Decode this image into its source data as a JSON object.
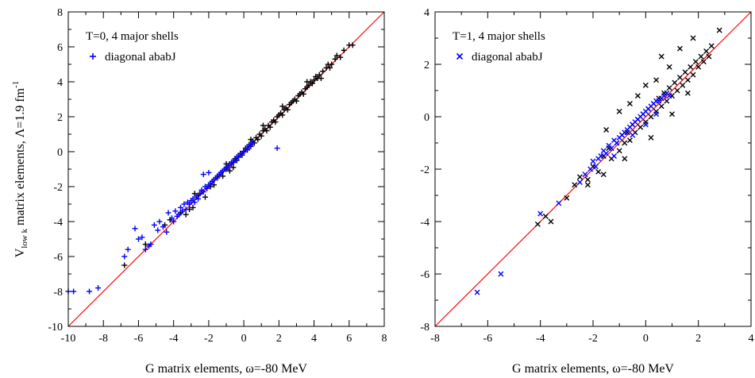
{
  "chart_data": [
    {
      "type": "scatter",
      "xlabel": "G matrix elements, ω=-80 MeV",
      "ylabel_parts": {
        "main": "V",
        "sub": "low k",
        "rest": " matrix elements, Λ=1.9 fm",
        "sup": "-1"
      },
      "xlim": [
        -10,
        8
      ],
      "ylim": [
        -10,
        8
      ],
      "xticks": [
        -10,
        -8,
        -6,
        -4,
        -2,
        0,
        2,
        4,
        6,
        8
      ],
      "yticks": [
        -10,
        -8,
        -6,
        -4,
        -2,
        0,
        2,
        4,
        6,
        8
      ],
      "legend_title": "T=0, 4 major shells",
      "legend_position": "top-left",
      "reference_line": {
        "from": [
          -10,
          -10
        ],
        "to": [
          8,
          8
        ],
        "color": "#ff0000"
      },
      "series": [
        {
          "name": "",
          "marker": "plus",
          "color": "#000000",
          "points": [
            [
              -6.8,
              -6.5
            ],
            [
              -5.6,
              -5.3
            ],
            [
              -4.5,
              -4.2
            ],
            [
              -4.2,
              -3.9
            ],
            [
              -3.6,
              -3.5
            ],
            [
              -3.3,
              -3.6
            ],
            [
              -3.1,
              -3.3
            ],
            [
              -2.9,
              -3.2
            ],
            [
              -2.6,
              -2.5
            ],
            [
              -2.4,
              -2.3
            ],
            [
              -2.2,
              -2.6
            ],
            [
              -2.1,
              -2.1
            ],
            [
              -1.9,
              -2.0
            ],
            [
              -1.7,
              -1.9
            ],
            [
              -1.5,
              -1.4
            ],
            [
              -1.3,
              -1.2
            ],
            [
              -1.2,
              -1.4
            ],
            [
              -1.0,
              -1.0
            ],
            [
              -0.9,
              -0.8
            ],
            [
              -0.8,
              -1.1
            ],
            [
              -0.7,
              -0.7
            ],
            [
              -0.6,
              -0.6
            ],
            [
              -0.5,
              -0.4
            ],
            [
              -0.4,
              -0.5
            ],
            [
              -0.3,
              -0.3
            ],
            [
              -0.2,
              -0.1
            ],
            [
              -0.1,
              -0.2
            ],
            [
              0.0,
              0.0
            ],
            [
              0.1,
              0.2
            ],
            [
              0.2,
              0.1
            ],
            [
              0.3,
              0.4
            ],
            [
              0.4,
              0.3
            ],
            [
              0.5,
              0.6
            ],
            [
              0.6,
              0.5
            ],
            [
              0.7,
              0.8
            ],
            [
              0.8,
              0.7
            ],
            [
              0.9,
              1.0
            ],
            [
              1.0,
              0.9
            ],
            [
              1.1,
              1.2
            ],
            [
              1.2,
              1.3
            ],
            [
              1.3,
              1.2
            ],
            [
              1.4,
              1.5
            ],
            [
              1.5,
              1.4
            ],
            [
              1.6,
              1.7
            ],
            [
              1.7,
              1.8
            ],
            [
              1.8,
              1.7
            ],
            [
              1.9,
              2.0
            ],
            [
              2.0,
              2.1
            ],
            [
              2.1,
              2.2
            ],
            [
              2.2,
              2.1
            ],
            [
              2.3,
              2.4
            ],
            [
              2.4,
              2.5
            ],
            [
              2.5,
              2.4
            ],
            [
              2.6,
              2.7
            ],
            [
              2.7,
              2.8
            ],
            [
              2.8,
              2.9
            ],
            [
              2.9,
              3.0
            ],
            [
              3.0,
              2.9
            ],
            [
              3.1,
              3.2
            ],
            [
              3.2,
              3.3
            ],
            [
              3.3,
              3.4
            ],
            [
              3.4,
              3.3
            ],
            [
              3.5,
              3.6
            ],
            [
              3.6,
              3.7
            ],
            [
              3.7,
              3.8
            ],
            [
              3.8,
              4.0
            ],
            [
              3.9,
              3.9
            ],
            [
              4.0,
              4.1
            ],
            [
              4.1,
              4.3
            ],
            [
              4.2,
              4.2
            ],
            [
              4.3,
              4.4
            ],
            [
              4.5,
              4.6
            ],
            [
              4.7,
              4.8
            ],
            [
              4.8,
              5.0
            ],
            [
              4.9,
              4.8
            ],
            [
              5.0,
              5.0
            ],
            [
              5.2,
              5.3
            ],
            [
              5.3,
              5.5
            ],
            [
              5.5,
              5.4
            ],
            [
              5.7,
              5.8
            ],
            [
              6.0,
              6.1
            ],
            [
              6.2,
              6.1
            ],
            [
              -1.0,
              -0.7
            ],
            [
              0.4,
              0.7
            ],
            [
              1.1,
              1.5
            ],
            [
              2.2,
              2.6
            ],
            [
              3.6,
              4.0
            ],
            [
              4.4,
              4.2
            ],
            [
              -2.8,
              -2.4
            ],
            [
              -0.6,
              -0.9
            ]
          ]
        },
        {
          "name": "diagonal ababJ",
          "marker": "plus",
          "color": "#0000ff",
          "points": [
            [
              -10.0,
              -8.0
            ],
            [
              -9.7,
              -8.0
            ],
            [
              -8.8,
              -8.0
            ],
            [
              -8.3,
              -7.8
            ],
            [
              -6.8,
              -6.0
            ],
            [
              -6.6,
              -5.6
            ],
            [
              -6.2,
              -4.4
            ],
            [
              -6.0,
              -5.0
            ],
            [
              -5.8,
              -4.9
            ],
            [
              -5.6,
              -5.6
            ],
            [
              -5.4,
              -5.4
            ],
            [
              -5.3,
              -5.3
            ],
            [
              -5.1,
              -4.2
            ],
            [
              -4.9,
              -4.5
            ],
            [
              -4.8,
              -4.0
            ],
            [
              -4.6,
              -4.3
            ],
            [
              -4.4,
              -4.6
            ],
            [
              -4.3,
              -3.5
            ],
            [
              -4.1,
              -3.8
            ],
            [
              -4.0,
              -4.0
            ],
            [
              -3.9,
              -3.4
            ],
            [
              -3.8,
              -3.7
            ],
            [
              -3.7,
              -3.6
            ],
            [
              -3.6,
              -3.2
            ],
            [
              -3.5,
              -3.4
            ],
            [
              -3.4,
              -3.0
            ],
            [
              -3.3,
              -3.3
            ],
            [
              -3.2,
              -2.9
            ],
            [
              -3.1,
              -3.0
            ],
            [
              -3.0,
              -2.8
            ],
            [
              -2.9,
              -2.7
            ],
            [
              -2.8,
              -2.9
            ],
            [
              -2.7,
              -2.6
            ],
            [
              -2.6,
              -2.7
            ],
            [
              -2.5,
              -2.4
            ],
            [
              -2.4,
              -2.2
            ],
            [
              -2.3,
              -2.3
            ],
            [
              -2.2,
              -2.0
            ],
            [
              -2.1,
              -2.1
            ],
            [
              -2.0,
              -1.9
            ],
            [
              -1.9,
              -1.8
            ],
            [
              -1.8,
              -1.7
            ],
            [
              -1.7,
              -1.6
            ],
            [
              -1.6,
              -1.5
            ],
            [
              -1.5,
              -1.5
            ],
            [
              -1.4,
              -1.3
            ],
            [
              -1.3,
              -1.2
            ],
            [
              -1.2,
              -1.1
            ],
            [
              -1.1,
              -1.0
            ],
            [
              -1.0,
              -0.9
            ],
            [
              -0.9,
              -0.9
            ],
            [
              -0.8,
              -0.7
            ],
            [
              -0.7,
              -0.6
            ],
            [
              -0.6,
              -0.6
            ],
            [
              -0.5,
              -0.5
            ],
            [
              -0.4,
              -0.3
            ],
            [
              -0.3,
              -0.3
            ],
            [
              -0.2,
              -0.2
            ],
            [
              -0.1,
              -0.1
            ],
            [
              0.0,
              0.0
            ],
            [
              0.1,
              0.1
            ],
            [
              0.2,
              0.2
            ],
            [
              0.3,
              0.3
            ],
            [
              0.4,
              0.4
            ],
            [
              0.5,
              0.5
            ],
            [
              -2.3,
              -1.3
            ],
            [
              -2.0,
              -1.2
            ],
            [
              1.9,
              0.2
            ]
          ]
        }
      ]
    },
    {
      "type": "scatter",
      "xlabel": "G matrix elements, ω=-80 MeV",
      "xlim": [
        -8,
        4
      ],
      "ylim": [
        -8,
        4
      ],
      "xticks": [
        -8,
        -6,
        -4,
        -2,
        0,
        2,
        4
      ],
      "yticks": [
        -8,
        -6,
        -4,
        -2,
        0,
        2,
        4
      ],
      "legend_title": "T=1, 4 major shells",
      "legend_position": "top-left",
      "reference_line": {
        "from": [
          -8,
          -8
        ],
        "to": [
          4,
          4
        ],
        "color": "#ff0000"
      },
      "series": [
        {
          "name": "",
          "marker": "cross",
          "color": "#000000",
          "points": [
            [
              -4.1,
              -4.1
            ],
            [
              -3.8,
              -3.8
            ],
            [
              -3.6,
              -4.0
            ],
            [
              -3.0,
              -3.1
            ],
            [
              -2.7,
              -2.6
            ],
            [
              -2.5,
              -2.3
            ],
            [
              -2.2,
              -2.4
            ],
            [
              -2.0,
              -1.9
            ],
            [
              -1.8,
              -2.1
            ],
            [
              -1.6,
              -1.5
            ],
            [
              -1.4,
              -1.2
            ],
            [
              -1.3,
              -1.6
            ],
            [
              -1.1,
              -1.0
            ],
            [
              -1.0,
              -1.3
            ],
            [
              -0.9,
              -0.7
            ],
            [
              -0.8,
              -1.0
            ],
            [
              -0.7,
              -0.6
            ],
            [
              -0.6,
              -0.9
            ],
            [
              -0.5,
              -0.3
            ],
            [
              -0.4,
              -0.6
            ],
            [
              -0.3,
              -0.1
            ],
            [
              -0.2,
              -0.4
            ],
            [
              -0.1,
              0.1
            ],
            [
              0.0,
              -0.2
            ],
            [
              0.1,
              0.3
            ],
            [
              0.2,
              0.0
            ],
            [
              0.3,
              0.5
            ],
            [
              0.4,
              0.2
            ],
            [
              0.5,
              0.7
            ],
            [
              0.6,
              0.4
            ],
            [
              0.7,
              0.9
            ],
            [
              0.8,
              0.6
            ],
            [
              0.9,
              1.1
            ],
            [
              1.0,
              0.8
            ],
            [
              1.1,
              1.3
            ],
            [
              1.2,
              1.0
            ],
            [
              1.3,
              1.5
            ],
            [
              1.4,
              1.2
            ],
            [
              1.5,
              1.7
            ],
            [
              1.6,
              1.4
            ],
            [
              1.7,
              1.9
            ],
            [
              1.8,
              1.6
            ],
            [
              1.9,
              2.1
            ],
            [
              2.0,
              1.9
            ],
            [
              2.1,
              2.3
            ],
            [
              2.2,
              2.1
            ],
            [
              2.3,
              2.5
            ],
            [
              2.4,
              2.3
            ],
            [
              2.5,
              2.7
            ],
            [
              2.8,
              3.3
            ],
            [
              1.8,
              3.0
            ],
            [
              1.3,
              2.6
            ],
            [
              0.6,
              2.3
            ],
            [
              0.9,
              1.9
            ],
            [
              0.4,
              1.4
            ],
            [
              -0.3,
              0.8
            ],
            [
              -0.6,
              0.5
            ],
            [
              -1.0,
              0.2
            ],
            [
              -1.5,
              -0.5
            ],
            [
              0.0,
              1.2
            ],
            [
              0.2,
              -0.8
            ],
            [
              -0.8,
              -1.6
            ],
            [
              -1.6,
              -2.2
            ],
            [
              -2.2,
              -2.6
            ],
            [
              1.0,
              0.1
            ],
            [
              1.6,
              0.9
            ]
          ]
        },
        {
          "name": "diagonal ababJ",
          "marker": "cross",
          "color": "#0000ff",
          "points": [
            [
              -6.4,
              -6.7
            ],
            [
              -5.5,
              -6.0
            ],
            [
              -4.0,
              -3.7
            ],
            [
              -3.3,
              -3.3
            ],
            [
              -2.5,
              -2.5
            ],
            [
              -2.3,
              -2.2
            ],
            [
              -2.1,
              -2.0
            ],
            [
              -2.0,
              -1.7
            ],
            [
              -1.9,
              -1.9
            ],
            [
              -1.8,
              -1.6
            ],
            [
              -1.7,
              -1.5
            ],
            [
              -1.6,
              -1.3
            ],
            [
              -1.5,
              -1.4
            ],
            [
              -1.4,
              -1.1
            ],
            [
              -1.3,
              -1.2
            ],
            [
              -1.2,
              -0.9
            ],
            [
              -1.1,
              -1.0
            ],
            [
              -1.0,
              -0.8
            ],
            [
              -0.9,
              -0.7
            ],
            [
              -0.8,
              -0.6
            ],
            [
              -0.7,
              -0.5
            ],
            [
              -0.6,
              -0.4
            ],
            [
              -0.5,
              -0.3
            ],
            [
              -0.4,
              -0.2
            ],
            [
              -0.3,
              -0.1
            ],
            [
              -0.2,
              0.0
            ],
            [
              -0.1,
              0.1
            ],
            [
              0.0,
              0.2
            ],
            [
              0.1,
              0.3
            ],
            [
              0.2,
              0.4
            ],
            [
              0.3,
              0.5
            ],
            [
              0.4,
              0.6
            ],
            [
              0.5,
              0.6
            ],
            [
              0.6,
              0.7
            ],
            [
              0.7,
              0.8
            ],
            [
              0.8,
              0.9
            ],
            [
              0.9,
              0.8
            ],
            [
              -1.2,
              -1.5
            ],
            [
              -0.5,
              -0.7
            ],
            [
              0.0,
              -0.3
            ],
            [
              0.4,
              0.1
            ]
          ]
        }
      ]
    }
  ]
}
